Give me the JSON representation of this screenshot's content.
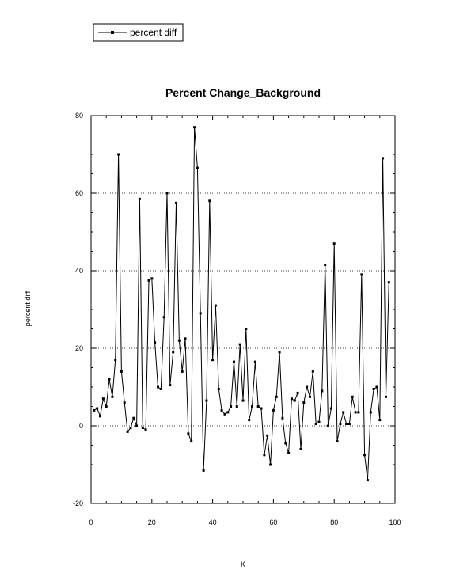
{
  "chart_data": {
    "type": "line",
    "title": "Percent Change_Background",
    "xlabel": "K",
    "ylabel": "percent diff",
    "xlim": [
      0,
      100
    ],
    "ylim": [
      -20,
      80
    ],
    "x_ticks": [
      0,
      20,
      40,
      60,
      80,
      100
    ],
    "y_ticks": [
      -20,
      0,
      20,
      40,
      60,
      80
    ],
    "x_tick_labels": [
      "0",
      "20",
      "40",
      "60",
      "80",
      "100"
    ],
    "y_tick_labels": [
      "-20",
      "0",
      "20",
      "40",
      "60",
      "80"
    ],
    "grid": "horizontal dotted at y ticks",
    "legend_position": "top-left, outside plot",
    "series": [
      {
        "name": "percent diff",
        "color": "#000000",
        "marker": "square",
        "x": [
          1,
          2,
          3,
          4,
          5,
          6,
          7,
          8,
          9,
          10,
          11,
          12,
          13,
          14,
          15,
          16,
          17,
          18,
          19,
          20,
          21,
          22,
          23,
          24,
          25,
          26,
          27,
          28,
          29,
          30,
          31,
          32,
          33,
          34,
          35,
          36,
          37,
          38,
          39,
          40,
          41,
          42,
          43,
          44,
          45,
          46,
          47,
          48,
          49,
          50,
          51,
          52,
          53,
          54,
          55,
          56,
          57,
          58,
          59,
          60,
          61,
          62,
          63,
          64,
          65,
          66,
          67,
          68,
          69,
          70,
          71,
          72,
          73,
          74,
          75,
          76,
          77,
          78,
          79,
          80,
          81,
          82,
          83,
          84,
          85,
          86,
          87,
          88,
          89,
          90,
          91,
          92,
          93,
          94,
          95,
          96,
          97,
          98
        ],
        "values": [
          4,
          4.5,
          2.5,
          7,
          5,
          12,
          7.5,
          17,
          70,
          14,
          6,
          -1.5,
          -0.5,
          2,
          0,
          58.5,
          -0.5,
          -1,
          37.5,
          38,
          21.5,
          10,
          9.5,
          28,
          60,
          10.5,
          19,
          57.5,
          22,
          14,
          22.5,
          -2,
          -4,
          77,
          66.5,
          29,
          -11.5,
          6.5,
          58,
          17,
          31,
          9.5,
          4,
          3,
          3.5,
          5,
          16.5,
          5,
          21,
          6.5,
          25,
          1.5,
          5,
          16.5,
          5,
          4.5,
          -7.5,
          -2.5,
          -10,
          4,
          7.5,
          19,
          2,
          -4.5,
          -7,
          7,
          6.5,
          8.5,
          -6,
          6,
          10,
          7.5,
          14,
          0.5,
          1,
          9,
          41.5,
          0,
          4.5,
          47,
          -4,
          0.5,
          3.5,
          0.5,
          0.5,
          7.5,
          3.5,
          3.5,
          39,
          -7.5,
          -14,
          3.5,
          9.5,
          10,
          1.5,
          69,
          7.5,
          37
        ]
      }
    ]
  }
}
